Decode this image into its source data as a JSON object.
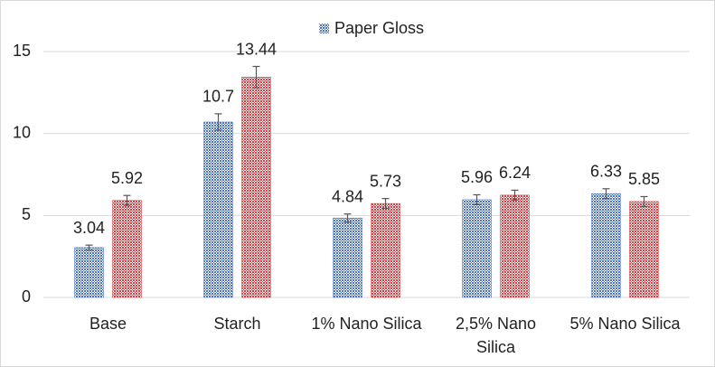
{
  "chart_data": {
    "type": "bar",
    "categories": [
      "Base",
      "Starch",
      "1% Nano Silica",
      "2,5% Nano Silica",
      "5% Nano Silica"
    ],
    "series": [
      {
        "name": "Paper Gloss",
        "color": "#4a72c8",
        "values": [
          3.04,
          10.7,
          4.84,
          5.96,
          6.33
        ],
        "errors": [
          0.15,
          0.5,
          0.25,
          0.3,
          0.3
        ]
      },
      {
        "color": "#e03a3e",
        "values": [
          5.92,
          13.44,
          5.73,
          6.24,
          5.85
        ],
        "errors": [
          0.3,
          0.65,
          0.3,
          0.3,
          0.3
        ]
      }
    ],
    "ylim": [
      0,
      15
    ],
    "yticks": [
      0,
      5,
      10,
      15
    ],
    "grid": true,
    "legend": "top"
  }
}
